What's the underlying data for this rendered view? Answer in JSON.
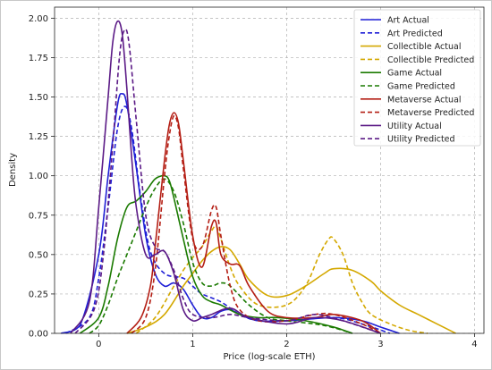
{
  "chart_data": {
    "type": "line",
    "xlabel": "Price (log-scale ETH)",
    "ylabel": "Density",
    "xlim": [
      -0.47,
      4.1
    ],
    "ylim": [
      0,
      2.07
    ],
    "x_ticks": [
      "0",
      "1",
      "2",
      "3",
      "4"
    ],
    "y_ticks": [
      "0.00",
      "0.25",
      "0.50",
      "0.75",
      "1.00",
      "1.25",
      "1.50",
      "1.75",
      "2.00"
    ],
    "grid": true,
    "legend_position": "top-right",
    "series": [
      {
        "name": "Art Actual",
        "color": "#1f1fd6",
        "style": "solid",
        "x": [
          -0.4,
          -0.2,
          0,
          0.1,
          0.2,
          0.25,
          0.3,
          0.4,
          0.5,
          0.6,
          0.7,
          0.8,
          0.9,
          1.0,
          1.1,
          1.2,
          1.3,
          1.4,
          1.5,
          1.7,
          2.0,
          2.5,
          2.8,
          3.0,
          3.2
        ],
        "y": [
          0.0,
          0.05,
          0.5,
          1.0,
          1.45,
          1.52,
          1.45,
          1.05,
          0.62,
          0.38,
          0.3,
          0.32,
          0.28,
          0.18,
          0.1,
          0.1,
          0.14,
          0.15,
          0.12,
          0.08,
          0.08,
          0.1,
          0.08,
          0.04,
          0.0
        ]
      },
      {
        "name": "Art Predicted",
        "color": "#1f1fd6",
        "style": "dashed",
        "x": [
          -0.35,
          -0.1,
          0,
          0.1,
          0.2,
          0.28,
          0.35,
          0.45,
          0.55,
          0.7,
          0.9,
          1.0,
          1.1,
          1.3,
          1.5,
          1.7,
          2.0,
          2.5,
          2.8,
          3.1
        ],
        "y": [
          0.0,
          0.1,
          0.35,
          0.8,
          1.3,
          1.44,
          1.3,
          0.85,
          0.52,
          0.38,
          0.35,
          0.3,
          0.25,
          0.2,
          0.12,
          0.08,
          0.08,
          0.1,
          0.06,
          0.0
        ]
      },
      {
        "name": "Collectible Actual",
        "color": "#d4a800",
        "style": "solid",
        "x": [
          0.3,
          0.5,
          0.7,
          0.9,
          1.0,
          1.1,
          1.2,
          1.3,
          1.4,
          1.5,
          1.6,
          1.8,
          2.0,
          2.2,
          2.4,
          2.5,
          2.7,
          2.9,
          3.0,
          3.2,
          3.4,
          3.6,
          3.8
        ],
        "y": [
          0.0,
          0.04,
          0.12,
          0.3,
          0.38,
          0.46,
          0.52,
          0.55,
          0.53,
          0.44,
          0.34,
          0.24,
          0.24,
          0.3,
          0.38,
          0.41,
          0.4,
          0.33,
          0.27,
          0.18,
          0.12,
          0.06,
          0.0
        ]
      },
      {
        "name": "Collectible Predicted",
        "color": "#d4a800",
        "style": "dashed",
        "x": [
          0.4,
          0.6,
          0.8,
          0.9,
          1.0,
          1.1,
          1.2,
          1.25,
          1.3,
          1.4,
          1.5,
          1.7,
          2.0,
          2.2,
          2.35,
          2.45,
          2.5,
          2.6,
          2.7,
          2.8,
          2.9,
          3.1,
          3.3,
          3.5
        ],
        "y": [
          0.0,
          0.1,
          0.3,
          0.4,
          0.48,
          0.55,
          0.65,
          0.68,
          0.6,
          0.42,
          0.3,
          0.18,
          0.18,
          0.3,
          0.5,
          0.6,
          0.6,
          0.5,
          0.32,
          0.2,
          0.12,
          0.06,
          0.02,
          0.0
        ]
      },
      {
        "name": "Game Actual",
        "color": "#1a7a00",
        "style": "solid",
        "x": [
          -0.2,
          0,
          0.1,
          0.2,
          0.3,
          0.4,
          0.5,
          0.6,
          0.7,
          0.75,
          0.8,
          0.9,
          1.0,
          1.1,
          1.2,
          1.3,
          1.5,
          1.7,
          1.9,
          2.2,
          2.5,
          2.7
        ],
        "y": [
          0.0,
          0.1,
          0.3,
          0.6,
          0.8,
          0.84,
          0.9,
          0.98,
          1.0,
          0.97,
          0.86,
          0.6,
          0.36,
          0.24,
          0.2,
          0.18,
          0.12,
          0.1,
          0.1,
          0.08,
          0.04,
          0.0
        ]
      },
      {
        "name": "Game Predicted",
        "color": "#1a7a00",
        "style": "dashed",
        "x": [
          -0.1,
          0,
          0.1,
          0.2,
          0.3,
          0.4,
          0.5,
          0.6,
          0.7,
          0.8,
          0.9,
          1.0,
          1.1,
          1.2,
          1.3,
          1.4,
          1.6,
          1.8,
          2.0,
          2.4,
          2.7
        ],
        "y": [
          0.0,
          0.05,
          0.18,
          0.35,
          0.5,
          0.65,
          0.8,
          0.92,
          0.98,
          0.9,
          0.7,
          0.45,
          0.32,
          0.3,
          0.32,
          0.3,
          0.18,
          0.1,
          0.08,
          0.05,
          0.0
        ]
      },
      {
        "name": "Metaverse Actual",
        "color": "#b41e14",
        "style": "solid",
        "x": [
          0.3,
          0.45,
          0.55,
          0.6,
          0.7,
          0.75,
          0.8,
          0.85,
          0.9,
          1.0,
          1.1,
          1.2,
          1.25,
          1.3,
          1.4,
          1.5,
          1.6,
          1.8,
          2.0,
          2.3,
          2.5,
          2.8,
          3.0
        ],
        "y": [
          0.0,
          0.1,
          0.3,
          0.55,
          1.1,
          1.32,
          1.4,
          1.33,
          1.1,
          0.62,
          0.42,
          0.68,
          0.7,
          0.5,
          0.44,
          0.43,
          0.3,
          0.14,
          0.1,
          0.1,
          0.12,
          0.08,
          0.0
        ]
      },
      {
        "name": "Metaverse Predicted",
        "color": "#b41e14",
        "style": "dashed",
        "x": [
          0.35,
          0.5,
          0.6,
          0.7,
          0.75,
          0.8,
          0.85,
          0.9,
          1.0,
          1.1,
          1.2,
          1.25,
          1.3,
          1.4,
          1.5,
          1.7,
          2.0,
          2.3,
          2.5,
          2.8,
          3.0
        ],
        "y": [
          0.0,
          0.1,
          0.4,
          1.0,
          1.25,
          1.38,
          1.3,
          1.05,
          0.6,
          0.55,
          0.78,
          0.8,
          0.62,
          0.3,
          0.15,
          0.08,
          0.08,
          0.12,
          0.12,
          0.06,
          0.0
        ]
      },
      {
        "name": "Utility Actual",
        "color": "#5b1a86",
        "style": "solid",
        "x": [
          -0.3,
          -0.1,
          0,
          0.1,
          0.15,
          0.2,
          0.25,
          0.3,
          0.35,
          0.4,
          0.5,
          0.6,
          0.7,
          0.8,
          0.9,
          1.0,
          1.1,
          1.2,
          1.4,
          1.6,
          2.0,
          2.3,
          2.6,
          3.0
        ],
        "y": [
          0.0,
          0.2,
          0.8,
          1.5,
          1.85,
          1.98,
          1.9,
          1.55,
          1.12,
          0.8,
          0.5,
          0.5,
          0.52,
          0.38,
          0.15,
          0.08,
          0.1,
          0.12,
          0.16,
          0.1,
          0.06,
          0.1,
          0.08,
          0.0
        ]
      },
      {
        "name": "Utility Predicted",
        "color": "#5b1a86",
        "style": "dashed",
        "x": [
          -0.25,
          -0.05,
          0.05,
          0.15,
          0.22,
          0.27,
          0.32,
          0.4,
          0.5,
          0.6,
          0.7,
          0.8,
          0.9,
          1.0,
          1.2,
          1.4,
          1.6,
          2.0,
          2.3,
          2.6,
          3.0
        ],
        "y": [
          0.0,
          0.15,
          0.5,
          1.2,
          1.75,
          1.92,
          1.85,
          1.35,
          0.75,
          0.55,
          0.52,
          0.4,
          0.22,
          0.12,
          0.1,
          0.12,
          0.1,
          0.08,
          0.12,
          0.08,
          0.0
        ]
      }
    ]
  }
}
